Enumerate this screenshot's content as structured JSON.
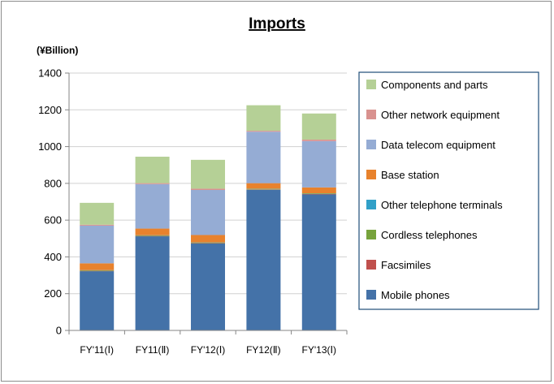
{
  "chart_data": {
    "type": "bar",
    "stacked": true,
    "title": "Imports",
    "unit_label": "(¥Billion)",
    "ylim": [
      0,
      1400
    ],
    "yticks": [
      0,
      200,
      400,
      600,
      800,
      1000,
      1200,
      1400
    ],
    "grid": true,
    "legend_position": "right",
    "categories": [
      "FY'11(Ⅰ)",
      "FY11(Ⅱ)",
      "FY'12(Ⅰ)",
      "FY12(Ⅱ)",
      "FY'13(Ⅰ)"
    ],
    "series": [
      {
        "name": "Mobile phones",
        "color": "#4472a8",
        "values": [
          322,
          512,
          473,
          765,
          740
        ]
      },
      {
        "name": "Facsimiles",
        "color": "#c0504d",
        "values": [
          2,
          2,
          2,
          2,
          2
        ]
      },
      {
        "name": "Cordless telephones",
        "color": "#77a33c",
        "values": [
          3,
          3,
          3,
          3,
          3
        ]
      },
      {
        "name": "Other telephone terminals",
        "color": "#31a0c8",
        "values": [
          1,
          1,
          1,
          1,
          1
        ]
      },
      {
        "name": "Base station",
        "color": "#e8822d",
        "values": [
          37,
          36,
          40,
          30,
          32
        ]
      },
      {
        "name": "Data telecom equipment",
        "color": "#95acd4",
        "values": [
          205,
          242,
          245,
          280,
          252
        ]
      },
      {
        "name": "Other network equipment",
        "color": "#d9928f",
        "values": [
          5,
          5,
          7,
          5,
          8
        ]
      },
      {
        "name": "Components and parts",
        "color": "#b5d096",
        "values": [
          119,
          144,
          157,
          139,
          142
        ]
      }
    ],
    "legend_order": [
      "Components and parts",
      "Other network equipment",
      "Data telecom equipment",
      "Base station",
      "Other telephone terminals",
      "Cordless telephones",
      "Facsimiles",
      "Mobile phones"
    ]
  }
}
